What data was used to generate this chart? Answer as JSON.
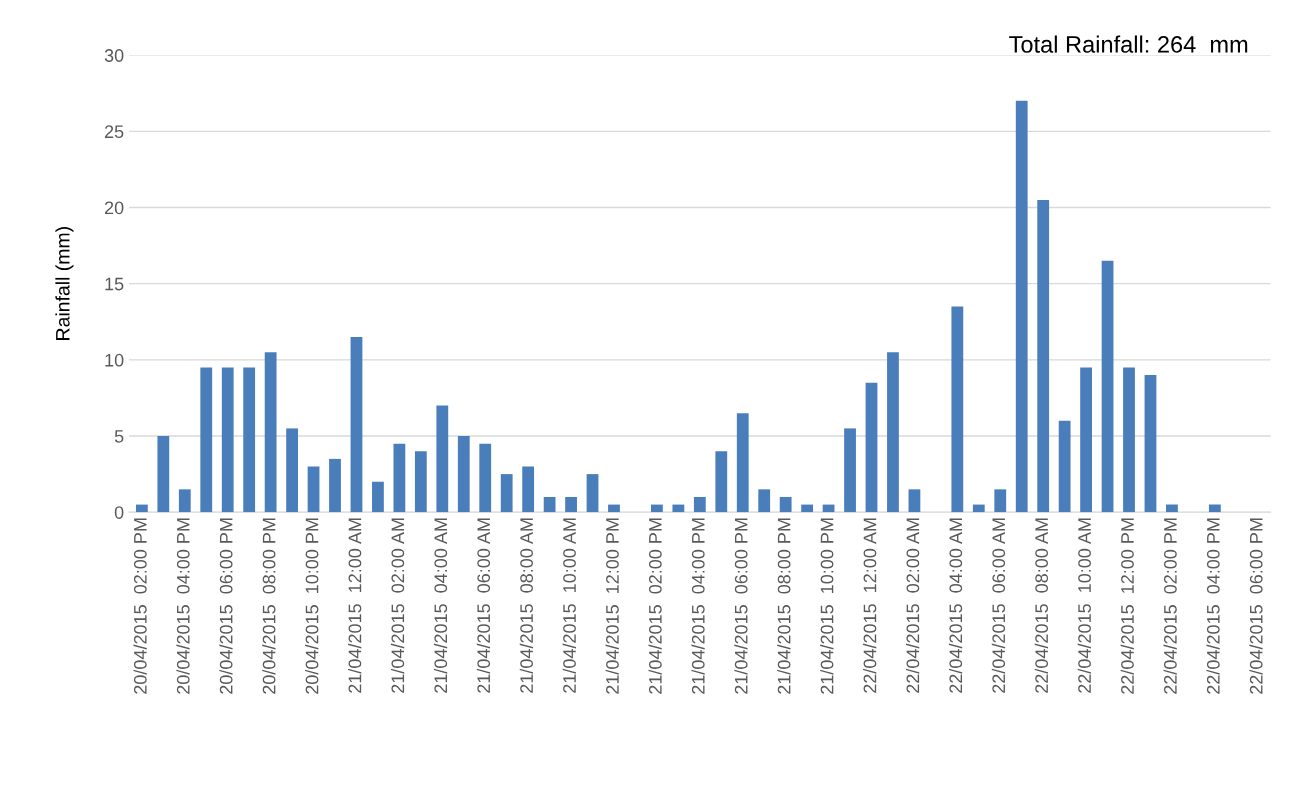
{
  "chart_data": {
    "type": "bar",
    "ylabel": "Rainfall (mm)",
    "annotations": [
      "Total Rainfall: 264  mm"
    ],
    "categories": [
      "20/04/2015  02:00 PM",
      null,
      "20/04/2015  04:00 PM",
      null,
      "20/04/2015  06:00 PM",
      null,
      "20/04/2015  08:00 PM",
      null,
      "20/04/2015  10:00 PM",
      null,
      "21/04/2015  12:00 AM",
      null,
      "21/04/2015  02:00 AM",
      null,
      "21/04/2015  04:00 AM",
      null,
      "21/04/2015  06:00 AM",
      null,
      "21/04/2015  08:00 AM",
      null,
      "21/04/2015  10:00 AM",
      null,
      "21/04/2015  12:00 PM",
      null,
      "21/04/2015  02:00 PM",
      null,
      "21/04/2015  04:00 PM",
      null,
      "21/04/2015  06:00 PM",
      null,
      "21/04/2015  08:00 PM",
      null,
      "21/04/2015  10:00 PM",
      null,
      "22/04/2015  12:00 AM",
      null,
      "22/04/2015  02:00 AM",
      null,
      "22/04/2015  04:00 AM",
      null,
      "22/04/2015  06:00 AM",
      null,
      "22/04/2015  08:00 AM",
      null,
      "22/04/2015  10:00 AM",
      null,
      "22/04/2015  12:00 PM",
      null,
      "22/04/2015  02:00 PM",
      null,
      "22/04/2015  04:00 PM",
      null,
      "22/04/2015  06:00 PM"
    ],
    "values": [
      0.5,
      5,
      1.5,
      9.5,
      9.5,
      9.5,
      10.5,
      5.5,
      3,
      3.5,
      11.5,
      2,
      4.5,
      4,
      7,
      5,
      4.5,
      2.5,
      3,
      1,
      1,
      2.5,
      0.5,
      0,
      0.5,
      0.5,
      1,
      4,
      6.5,
      1.5,
      1,
      0.5,
      0.5,
      5.5,
      8.5,
      10.5,
      1.5,
      0,
      13.5,
      0.5,
      1.5,
      27,
      20.5,
      6,
      9.5,
      16.5,
      9.5,
      9,
      0.5,
      0,
      0.5,
      0,
      0
    ],
    "color": "#4a7ebb",
    "ylim": [
      0,
      30
    ],
    "yticks": [
      0,
      5,
      10,
      15,
      20,
      25,
      30
    ],
    "grid": "y"
  }
}
